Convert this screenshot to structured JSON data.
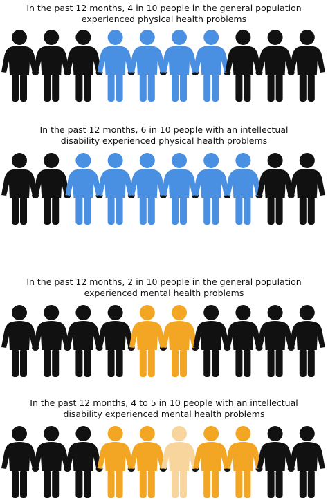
{
  "colors": {
    "black": "#111111",
    "blue": "#4a90e2",
    "orange": "#f2a623",
    "light_orange": "#f8d59d"
  },
  "icons": {
    "figure": "person-figure-icon"
  },
  "panels": [
    {
      "id": "physical-general",
      "caption_lines": [
        "In the past 12 months, 4 in 10  people in the general population",
        "experienced physical health problems"
      ],
      "figures": [
        "black",
        "black",
        "black",
        "blue",
        "blue",
        "blue",
        "blue",
        "black",
        "black",
        "black"
      ]
    },
    {
      "id": "physical-intellectual",
      "caption_lines": [
        "In the past 12 months,  6 in 10  people with an intellectual",
        "disability experienced physical health problems"
      ],
      "figures": [
        "black",
        "black",
        "blue",
        "blue",
        "blue",
        "blue",
        "blue",
        "blue",
        "black",
        "black"
      ]
    },
    {
      "id": "mental-general",
      "caption_lines": [
        "In the past 12 months, 2 in 10  people in the general population",
        "experienced mental health problems"
      ],
      "figures": [
        "black",
        "black",
        "black",
        "black",
        "orange",
        "orange",
        "black",
        "black",
        "black",
        "black"
      ]
    },
    {
      "id": "mental-intellectual",
      "caption_lines": [
        "In the past 12 months,  4 to 5 in 10  people with an intellectual",
        "disability experienced mental health problems"
      ],
      "figures": [
        "black",
        "black",
        "black",
        "orange",
        "orange",
        "light_orange",
        "orange",
        "orange",
        "black",
        "black"
      ]
    }
  ]
}
